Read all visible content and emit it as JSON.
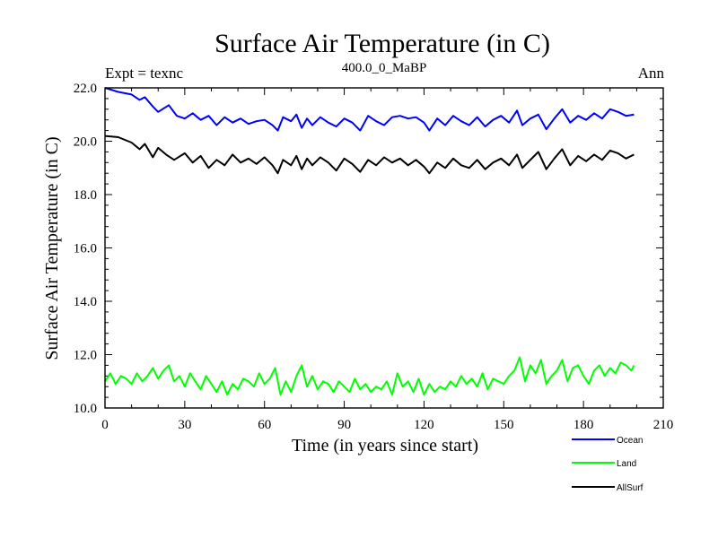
{
  "chart_data": {
    "type": "line",
    "title": "Surface Air Temperature (in C)",
    "subtitle": "400.0_0_MaBP",
    "left_label": "Expt = texnc",
    "right_label": "Ann",
    "xlabel": "Time (in years since start)",
    "ylabel": "Surface Air Temperature (in C)",
    "xlim": [
      0,
      210
    ],
    "ylim": [
      10.0,
      22.0
    ],
    "x_ticks": [
      0,
      30,
      60,
      90,
      120,
      150,
      180,
      210
    ],
    "y_ticks": [
      "10.0",
      "12.0",
      "14.0",
      "16.0",
      "18.0",
      "20.0",
      "22.0"
    ],
    "y_tick_values": [
      10,
      12,
      14,
      16,
      18,
      20,
      22
    ],
    "legend_position": "bottom-right",
    "series": [
      {
        "name": "Ocean",
        "color": "#0000ff",
        "x": [
          0,
          5,
          10,
          13,
          15,
          18,
          20,
          24,
          27,
          30,
          33,
          36,
          39,
          42,
          45,
          48,
          51,
          54,
          57,
          60,
          63,
          65,
          67,
          70,
          72,
          74,
          76,
          78,
          81,
          84,
          87,
          90,
          93,
          96,
          99,
          102,
          105,
          108,
          111,
          114,
          117,
          120,
          122,
          125,
          128,
          131,
          134,
          137,
          140,
          143,
          146,
          149,
          152,
          155,
          157,
          160,
          163,
          166,
          169,
          172,
          175,
          178,
          181,
          184,
          187,
          190,
          193,
          196,
          199
        ],
        "values": [
          22.0,
          21.85,
          21.75,
          21.55,
          21.65,
          21.3,
          21.1,
          21.35,
          20.95,
          20.85,
          21.05,
          20.8,
          20.95,
          20.6,
          20.9,
          20.7,
          20.85,
          20.65,
          20.75,
          20.8,
          20.6,
          20.4,
          20.9,
          20.75,
          21.0,
          20.5,
          20.85,
          20.6,
          20.9,
          20.7,
          20.55,
          20.85,
          20.7,
          20.4,
          20.95,
          20.75,
          20.6,
          20.9,
          20.95,
          20.85,
          20.9,
          20.7,
          20.4,
          20.85,
          20.6,
          20.95,
          20.75,
          20.6,
          20.9,
          20.55,
          20.8,
          20.95,
          20.7,
          21.15,
          20.6,
          20.85,
          21.0,
          20.45,
          20.85,
          21.2,
          20.7,
          20.95,
          20.8,
          21.05,
          20.85,
          21.2,
          21.1,
          20.95,
          21.0
        ]
      },
      {
        "name": "Land",
        "color": "#00ff00",
        "x": [
          0,
          2,
          4,
          6,
          8,
          10,
          12,
          14,
          16,
          18,
          20,
          22,
          24,
          26,
          28,
          30,
          32,
          34,
          36,
          38,
          40,
          42,
          44,
          46,
          48,
          50,
          52,
          54,
          56,
          58,
          60,
          62,
          64,
          66,
          68,
          70,
          72,
          74,
          76,
          78,
          80,
          82,
          84,
          86,
          88,
          90,
          92,
          94,
          96,
          98,
          100,
          102,
          104,
          106,
          108,
          110,
          112,
          114,
          116,
          118,
          120,
          122,
          124,
          126,
          128,
          130,
          132,
          134,
          136,
          138,
          140,
          142,
          144,
          146,
          148,
          150,
          152,
          154,
          156,
          158,
          160,
          162,
          164,
          166,
          168,
          170,
          172,
          174,
          176,
          178,
          180,
          182,
          184,
          186,
          188,
          190,
          192,
          194,
          196,
          198,
          199
        ],
        "values": [
          11.0,
          11.3,
          10.9,
          11.2,
          11.1,
          10.9,
          11.3,
          11.0,
          11.2,
          11.5,
          11.1,
          11.4,
          11.6,
          11.0,
          11.2,
          10.8,
          11.3,
          11.0,
          10.7,
          11.2,
          10.9,
          10.6,
          11.0,
          10.5,
          10.9,
          10.7,
          11.1,
          11.0,
          10.8,
          11.3,
          10.9,
          11.1,
          11.5,
          10.5,
          11.0,
          10.6,
          11.2,
          11.6,
          10.8,
          11.2,
          10.7,
          11.0,
          10.9,
          10.6,
          11.0,
          10.8,
          10.6,
          11.1,
          10.7,
          10.9,
          10.6,
          10.8,
          10.7,
          11.0,
          10.5,
          11.3,
          10.8,
          11.0,
          10.6,
          11.1,
          10.5,
          10.9,
          10.6,
          10.8,
          10.7,
          11.0,
          10.8,
          11.2,
          10.9,
          11.1,
          10.8,
          11.3,
          10.7,
          11.1,
          11.0,
          10.9,
          11.2,
          11.4,
          11.9,
          11.0,
          11.6,
          11.3,
          11.8,
          10.9,
          11.2,
          11.4,
          11.8,
          11.0,
          11.5,
          11.6,
          11.2,
          10.9,
          11.4,
          11.6,
          11.2,
          11.5,
          11.3,
          11.7,
          11.6,
          11.4,
          11.6
        ]
      },
      {
        "name": "AllSurf",
        "color": "#000000",
        "x": [
          0,
          5,
          10,
          13,
          15,
          18,
          20,
          23,
          26,
          30,
          33,
          36,
          39,
          42,
          45,
          48,
          51,
          54,
          57,
          60,
          63,
          65,
          67,
          70,
          72,
          74,
          76,
          78,
          81,
          84,
          87,
          90,
          93,
          96,
          99,
          102,
          105,
          108,
          111,
          114,
          117,
          120,
          122,
          125,
          128,
          131,
          134,
          137,
          140,
          143,
          146,
          149,
          152,
          155,
          157,
          160,
          163,
          166,
          169,
          172,
          175,
          178,
          181,
          184,
          187,
          190,
          193,
          196,
          199
        ],
        "values": [
          20.2,
          20.15,
          19.95,
          19.7,
          19.9,
          19.4,
          19.75,
          19.5,
          19.3,
          19.55,
          19.2,
          19.45,
          19.0,
          19.3,
          19.1,
          19.5,
          19.2,
          19.35,
          19.15,
          19.4,
          19.1,
          18.8,
          19.3,
          19.1,
          19.45,
          18.95,
          19.35,
          19.1,
          19.4,
          19.2,
          18.9,
          19.35,
          19.15,
          18.85,
          19.3,
          19.1,
          19.4,
          19.2,
          19.35,
          19.1,
          19.3,
          19.05,
          18.8,
          19.2,
          19.0,
          19.35,
          19.1,
          19.0,
          19.3,
          18.95,
          19.2,
          19.35,
          19.1,
          19.5,
          19.0,
          19.3,
          19.6,
          18.95,
          19.35,
          19.7,
          19.1,
          19.45,
          19.25,
          19.5,
          19.3,
          19.65,
          19.55,
          19.35,
          19.5
        ]
      }
    ]
  }
}
